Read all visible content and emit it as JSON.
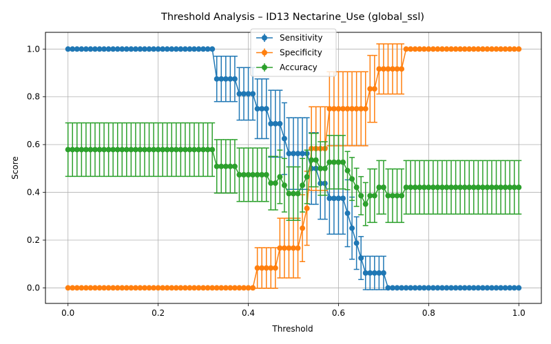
{
  "chart_data": {
    "type": "line",
    "title": "Threshold Analysis – ID13 Nectarine_Use (global_ssl)",
    "xlabel": "Threshold",
    "ylabel": "Score",
    "xlim": [
      -0.05,
      1.05
    ],
    "ylim": [
      -0.065,
      1.07
    ],
    "x_ticks": [
      0.0,
      0.2,
      0.4,
      0.6,
      0.8,
      1.0
    ],
    "x_tick_labels": [
      "0.0",
      "0.2",
      "0.4",
      "0.6",
      "0.8",
      "1.0"
    ],
    "y_ticks": [
      0.0,
      0.2,
      0.4,
      0.6,
      0.8,
      1.0
    ],
    "y_tick_labels": [
      "0.0",
      "0.2",
      "0.4",
      "0.6",
      "0.8",
      "1.0"
    ],
    "grid": true,
    "legend_position": "top-center",
    "x_range": {
      "start": 0.0,
      "stop": 1.0,
      "count": 101
    },
    "series": [
      {
        "name": "Sensitivity",
        "color": "#1f77b4",
        "segments": [
          {
            "from": 0.0,
            "to": 0.32,
            "value": 1.0,
            "err": 0.0
          },
          {
            "from": 0.33,
            "to": 0.37,
            "value": 0.875,
            "err": 0.095
          },
          {
            "from": 0.38,
            "to": 0.41,
            "value": 0.8125,
            "err": 0.11
          },
          {
            "from": 0.42,
            "to": 0.44,
            "value": 0.75,
            "err": 0.125
          },
          {
            "from": 0.45,
            "to": 0.47,
            "value": 0.6875,
            "err": 0.14
          },
          {
            "from": 0.48,
            "to": 0.48,
            "value": 0.625,
            "err": 0.15
          },
          {
            "from": 0.49,
            "to": 0.53,
            "value": 0.5625,
            "err": 0.15
          },
          {
            "from": 0.54,
            "to": 0.55,
            "value": 0.5,
            "err": 0.15
          },
          {
            "from": 0.56,
            "to": 0.57,
            "value": 0.4375,
            "err": 0.15
          },
          {
            "from": 0.58,
            "to": 0.61,
            "value": 0.375,
            "err": 0.15
          },
          {
            "from": 0.62,
            "to": 0.62,
            "value": 0.3125,
            "err": 0.14
          },
          {
            "from": 0.63,
            "to": 0.63,
            "value": 0.25,
            "err": 0.13
          },
          {
            "from": 0.64,
            "to": 0.64,
            "value": 0.1875,
            "err": 0.11
          },
          {
            "from": 0.65,
            "to": 0.65,
            "value": 0.125,
            "err": 0.09
          },
          {
            "from": 0.66,
            "to": 0.7,
            "value": 0.0625,
            "err": 0.07
          },
          {
            "from": 0.71,
            "to": 1.0,
            "value": 0.0,
            "err": 0.0
          }
        ]
      },
      {
        "name": "Specificity",
        "color": "#ff7f0e",
        "segments": [
          {
            "from": 0.0,
            "to": 0.41,
            "value": 0.0,
            "err": 0.0
          },
          {
            "from": 0.42,
            "to": 0.46,
            "value": 0.0833,
            "err": 0.085
          },
          {
            "from": 0.47,
            "to": 0.51,
            "value": 0.1667,
            "err": 0.125
          },
          {
            "from": 0.52,
            "to": 0.52,
            "value": 0.25,
            "err": 0.14
          },
          {
            "from": 0.53,
            "to": 0.53,
            "value": 0.3333,
            "err": 0.155
          },
          {
            "from": 0.54,
            "to": 0.57,
            "value": 0.5833,
            "err": 0.175
          },
          {
            "from": 0.58,
            "to": 0.66,
            "value": 0.75,
            "err": 0.155
          },
          {
            "from": 0.67,
            "to": 0.68,
            "value": 0.8333,
            "err": 0.14
          },
          {
            "from": 0.69,
            "to": 0.74,
            "value": 0.9167,
            "err": 0.105
          },
          {
            "from": 0.75,
            "to": 1.0,
            "value": 1.0,
            "err": 0.0
          }
        ]
      },
      {
        "name": "Accuracy",
        "color": "#2ca02c",
        "segments": [
          {
            "from": 0.0,
            "to": 0.32,
            "value": 0.5789,
            "err": 0.112
          },
          {
            "from": 0.33,
            "to": 0.37,
            "value": 0.5088,
            "err": 0.112
          },
          {
            "from": 0.38,
            "to": 0.41,
            "value": 0.4737,
            "err": 0.112
          },
          {
            "from": 0.42,
            "to": 0.44,
            "value": 0.4737,
            "err": 0.112
          },
          {
            "from": 0.45,
            "to": 0.46,
            "value": 0.4386,
            "err": 0.112
          },
          {
            "from": 0.47,
            "to": 0.47,
            "value": 0.4649,
            "err": 0.112
          },
          {
            "from": 0.48,
            "to": 0.48,
            "value": 0.4298,
            "err": 0.112
          },
          {
            "from": 0.49,
            "to": 0.51,
            "value": 0.3947,
            "err": 0.112
          },
          {
            "from": 0.52,
            "to": 0.52,
            "value": 0.4298,
            "err": 0.112
          },
          {
            "from": 0.53,
            "to": 0.53,
            "value": 0.4649,
            "err": 0.112
          },
          {
            "from": 0.54,
            "to": 0.55,
            "value": 0.5351,
            "err": 0.112
          },
          {
            "from": 0.56,
            "to": 0.57,
            "value": 0.5,
            "err": 0.112
          },
          {
            "from": 0.58,
            "to": 0.61,
            "value": 0.5263,
            "err": 0.112
          },
          {
            "from": 0.62,
            "to": 0.62,
            "value": 0.4912,
            "err": 0.08
          },
          {
            "from": 0.63,
            "to": 0.63,
            "value": 0.4561,
            "err": 0.09
          },
          {
            "from": 0.64,
            "to": 0.64,
            "value": 0.4211,
            "err": 0.08
          },
          {
            "from": 0.65,
            "to": 0.65,
            "value": 0.386,
            "err": 0.08
          },
          {
            "from": 0.66,
            "to": 0.66,
            "value": 0.3509,
            "err": 0.09
          },
          {
            "from": 0.67,
            "to": 0.68,
            "value": 0.386,
            "err": 0.112
          },
          {
            "from": 0.69,
            "to": 0.7,
            "value": 0.4211,
            "err": 0.112
          },
          {
            "from": 0.71,
            "to": 0.74,
            "value": 0.386,
            "err": 0.112
          },
          {
            "from": 0.75,
            "to": 1.0,
            "value": 0.4211,
            "err": 0.112
          }
        ]
      }
    ]
  }
}
